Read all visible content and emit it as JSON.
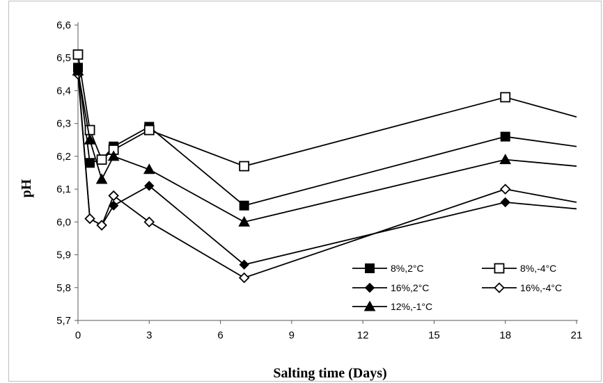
{
  "chart_data": {
    "type": "line",
    "xlabel": "Salting time (Days)",
    "ylabel": "pH",
    "xlim": [
      0,
      21
    ],
    "ylim": [
      5.7,
      6.6
    ],
    "xticks": [
      "0",
      "3",
      "6",
      "9",
      "12",
      "15",
      "18",
      "21"
    ],
    "yticks": [
      "5,7",
      "5,8",
      "5,9",
      "6,0",
      "6,1",
      "6,2",
      "6,3",
      "6,4",
      "6,5",
      "6,6"
    ],
    "grid": false,
    "legend_position": "bottom-right",
    "x": [
      0,
      0.5,
      1,
      1.5,
      3,
      7,
      18,
      21
    ],
    "series": [
      {
        "name": "8%,2°C",
        "marker": "filled-square",
        "values": [
          6.47,
          6.18,
          6.19,
          6.23,
          6.29,
          6.05,
          6.26,
          6.23
        ]
      },
      {
        "name": "8%,-4°C",
        "marker": "open-square",
        "values": [
          6.51,
          6.28,
          6.19,
          6.22,
          6.28,
          6.17,
          6.38,
          6.32
        ]
      },
      {
        "name": "16%,2°C",
        "marker": "filled-diamond",
        "values": [
          6.46,
          6.01,
          5.99,
          6.05,
          6.11,
          5.87,
          6.06,
          6.04
        ]
      },
      {
        "name": "16%,-4°C",
        "marker": "open-diamond",
        "values": [
          6.45,
          6.01,
          5.99,
          6.08,
          6.0,
          5.83,
          6.1,
          6.06
        ]
      },
      {
        "name": "12%,-1°C",
        "marker": "filled-triangle",
        "values": [
          6.46,
          6.25,
          6.13,
          6.2,
          6.16,
          6.0,
          6.19,
          6.17
        ]
      }
    ]
  }
}
